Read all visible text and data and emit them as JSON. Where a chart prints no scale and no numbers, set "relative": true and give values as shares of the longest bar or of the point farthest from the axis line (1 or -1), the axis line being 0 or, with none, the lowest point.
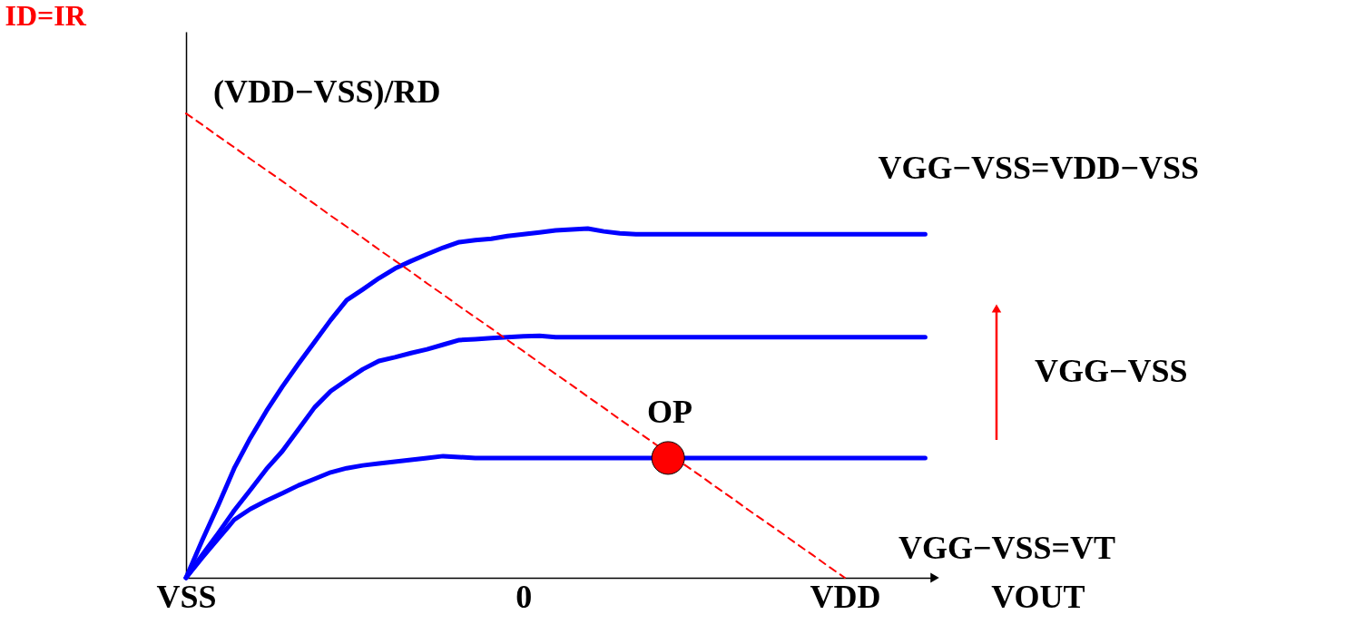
{
  "chart_data": {
    "type": "line",
    "relative": true,
    "xlabel": "VOUT",
    "ylabel": "ID=IR",
    "categories": [
      "VSS",
      null,
      null,
      null,
      null,
      null,
      null,
      null,
      null,
      null,
      null,
      null,
      null,
      null,
      null,
      null,
      null,
      null,
      null,
      null,
      null,
      "0",
      null,
      null,
      null,
      null,
      null,
      null,
      null,
      null,
      null,
      null,
      null,
      null,
      null,
      null,
      null,
      null,
      null,
      null,
      null,
      "VDD",
      null,
      null,
      null,
      null,
      null
    ],
    "series": [
      {
        "name": "VGG−VSS=VDD−VSS",
        "color": "#0000ff",
        "values": [
          0,
          0.08,
          0.156,
          0.236,
          0.301,
          0.359,
          0.412,
          0.461,
          0.508,
          0.555,
          0.598,
          0.621,
          0.645,
          0.666,
          0.682,
          0.697,
          0.711,
          0.723,
          0.727,
          0.73,
          0.736,
          0.74,
          0.744,
          0.748,
          0.75,
          0.752,
          0.746,
          0.742,
          0.74,
          0.74,
          0.74,
          0.74,
          0.74,
          0.74,
          0.74,
          0.74,
          0.74,
          0.74,
          0.74,
          0.74,
          0.74,
          0.74,
          0.74,
          0.74,
          0.74,
          0.74,
          0.74
        ]
      },
      {
        "color": "#0000ff",
        "values": [
          0,
          0.049,
          0.096,
          0.145,
          0.189,
          0.234,
          0.273,
          0.32,
          0.367,
          0.402,
          0.426,
          0.449,
          0.467,
          0.475,
          0.484,
          0.492,
          0.502,
          0.512,
          0.514,
          0.516,
          0.518,
          0.52,
          0.521,
          0.518,
          0.518,
          0.518,
          0.518,
          0.518,
          0.518,
          0.518,
          0.518,
          0.518,
          0.518,
          0.518,
          0.518,
          0.518,
          0.518,
          0.518,
          0.518,
          0.518,
          0.518,
          0.518,
          0.518,
          0.518,
          0.518,
          0.518,
          0.518
        ]
      },
      {
        "color": "#0000ff",
        "values": [
          0,
          0.043,
          0.084,
          0.125,
          0.148,
          0.166,
          0.182,
          0.199,
          0.213,
          0.227,
          0.236,
          0.242,
          0.246,
          0.25,
          0.254,
          0.258,
          0.262,
          0.26,
          0.258,
          0.258,
          0.258,
          0.258,
          0.258,
          0.258,
          0.258,
          0.258,
          0.258,
          0.258,
          0.258,
          0.258,
          null,
          0.258,
          0.258,
          0.258,
          0.258,
          0.258,
          0.258,
          0.258,
          0.258,
          0.258,
          0.258,
          0.258,
          0.258,
          0.258,
          0.258,
          0.258,
          0.258
        ]
      },
      {
        "type": "line",
        "color": "#ff0000",
        "line_style": "dashed",
        "values": [
          1,
          0.976,
          0.951,
          0.927,
          0.902,
          0.878,
          0.854,
          0.829,
          0.805,
          0.78,
          0.756,
          0.732,
          0.707,
          0.683,
          0.659,
          0.634,
          0.61,
          0.585,
          0.561,
          0.537,
          0.512,
          0.488,
          0.463,
          0.439,
          0.415,
          0.39,
          0.366,
          0.341,
          0.317,
          0.293,
          0.268,
          0.244,
          0.22,
          0.195,
          0.171,
          0.146,
          0.122,
          0.098,
          0.073,
          0.049,
          0.024,
          0,
          null,
          null,
          null,
          null,
          null
        ]
      },
      {
        "type": "scatter",
        "color": "#ff0000",
        "marker": "circle",
        "values": [
          null,
          null,
          null,
          null,
          null,
          null,
          null,
          null,
          null,
          null,
          null,
          null,
          null,
          null,
          null,
          null,
          null,
          null,
          null,
          null,
          null,
          null,
          null,
          null,
          null,
          null,
          null,
          null,
          null,
          null,
          0.258,
          null,
          null,
          null,
          null,
          null,
          null,
          null,
          null,
          null,
          null,
          null,
          null,
          null,
          null,
          null,
          null
        ]
      }
    ],
    "annotations": [
      "(VDD−VSS)/RD",
      "OP",
      "VGG−VSS",
      "VGG−VSS=VT"
    ]
  }
}
